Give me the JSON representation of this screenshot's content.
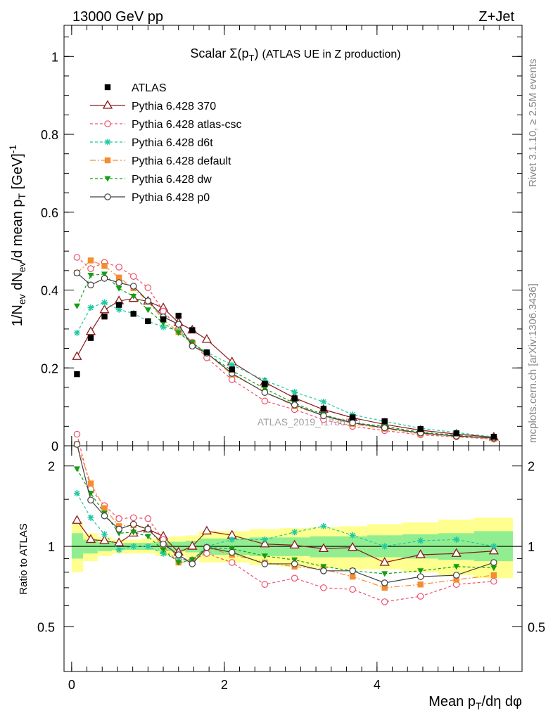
{
  "header": {
    "left": "13000 GeV pp",
    "right": "Z+Jet"
  },
  "plot_title": "Scalar Σ(pT) (ATLAS UE in Z production)",
  "side_labels": {
    "rivet": "Rivet 3.1.10, ≥ 2.5M events",
    "mcplots": "mcplots.cern.ch [arXiv:1306.3436]"
  },
  "watermark": "ATLAS_2019_I1736531",
  "colors": {
    "ATLAS": "#000000",
    "p370": "#8b1a1a",
    "atlascsc": "#f0506e",
    "d6t": "#20c8a0",
    "default": "#f58c30",
    "dw": "#10a010",
    "p0": "#404040",
    "band_green": "#90ee90",
    "band_yellow": "#ffff90"
  },
  "chart_data": [
    {
      "type": "line",
      "panel": "main",
      "ylabel": "1/Nev dNev/d mean pT [GeV]-1",
      "xlim": [
        -0.1,
        5.9
      ],
      "ylim": [
        0,
        1.08
      ],
      "yticks": [
        0,
        0.2,
        0.4,
        0.6,
        0.8,
        1
      ],
      "ytick_labels": [
        "0",
        "0.2",
        "0.4",
        "0.6",
        "0.8",
        "1"
      ],
      "x": [
        0.07,
        0.25,
        0.43,
        0.62,
        0.81,
        1.0,
        1.2,
        1.4,
        1.58,
        1.77,
        2.1,
        2.53,
        2.92,
        3.3,
        3.68,
        4.1,
        4.57,
        5.04,
        5.53
      ],
      "series": [
        {
          "name": "ATLAS",
          "key": "ATLAS",
          "marker": "square",
          "values": [
            0.184,
            0.277,
            0.332,
            0.362,
            0.339,
            0.32,
            0.325,
            0.334,
            0.297,
            0.24,
            0.196,
            0.159,
            0.122,
            0.095,
            0.073,
            0.063,
            0.043,
            0.032,
            0.023
          ]
        },
        {
          "name": "Pythia 6.428 370",
          "key": "p370",
          "marker": "triangle-up-open",
          "dash": "",
          "values": [
            0.229,
            0.293,
            0.349,
            0.372,
            0.378,
            0.371,
            0.354,
            0.316,
            0.297,
            0.273,
            0.215,
            0.163,
            0.123,
            0.093,
            0.072,
            0.055,
            0.04,
            0.03,
            0.022
          ]
        },
        {
          "name": "Pythia 6.428 atlas-csc",
          "key": "atlascsc",
          "marker": "circle-open",
          "dash": "4,3",
          "values": [
            0.484,
            0.455,
            0.471,
            0.459,
            0.435,
            0.406,
            0.346,
            0.301,
            0.266,
            0.226,
            0.17,
            0.115,
            0.093,
            0.067,
            0.05,
            0.039,
            0.028,
            0.023,
            0.017
          ]
        },
        {
          "name": "Pythia 6.428 d6t",
          "key": "d6t",
          "marker": "star",
          "dash": "4,3",
          "values": [
            0.29,
            0.355,
            0.368,
            0.35,
            0.34,
            0.32,
            0.305,
            0.297,
            0.263,
            0.24,
            0.208,
            0.168,
            0.138,
            0.113,
            0.08,
            0.063,
            0.045,
            0.034,
            0.023
          ]
        },
        {
          "name": "Pythia 6.428 default",
          "key": "default",
          "marker": "square",
          "dash": "8,3,2,3",
          "values": [
            0.444,
            0.476,
            0.462,
            0.432,
            0.405,
            0.371,
            0.324,
            0.292,
            0.262,
            0.238,
            0.183,
            0.139,
            0.102,
            0.078,
            0.056,
            0.044,
            0.031,
            0.024,
            0.018
          ]
        },
        {
          "name": "Pythia 6.428 dw",
          "key": "dw",
          "marker": "triangle-down",
          "dash": "4,3",
          "values": [
            0.359,
            0.438,
            0.441,
            0.404,
            0.384,
            0.349,
            0.315,
            0.29,
            0.265,
            0.237,
            0.193,
            0.147,
            0.109,
            0.08,
            0.059,
            0.05,
            0.035,
            0.027,
            0.019
          ]
        },
        {
          "name": "Pythia 6.428 p0",
          "key": "p0",
          "marker": "circle-open",
          "dash": "",
          "values": [
            0.444,
            0.413,
            0.43,
            0.419,
            0.41,
            0.372,
            0.331,
            0.312,
            0.256,
            0.238,
            0.186,
            0.137,
            0.105,
            0.077,
            0.059,
            0.046,
            0.033,
            0.025,
            0.02
          ]
        }
      ]
    },
    {
      "type": "line",
      "panel": "ratio",
      "ylabel": "Ratio to ATLAS",
      "xlabel": "Mean pT/dη dφ",
      "xlim": [
        -0.1,
        5.9
      ],
      "xticks": [
        0,
        2,
        4
      ],
      "xtick_labels": [
        "0",
        "2",
        "4"
      ],
      "ylim": [
        0.34,
        2.38
      ],
      "yticks": [
        0.5,
        1,
        2
      ],
      "ytick_labels": [
        "0.5",
        "1",
        "2"
      ],
      "yticks_right": [
        0.5,
        1,
        2
      ],
      "band_edges": [
        0.0,
        0.15,
        0.34,
        0.53,
        0.72,
        0.91,
        1.1,
        1.3,
        1.49,
        1.67,
        1.87,
        2.33,
        2.73,
        3.12,
        3.49,
        3.87,
        4.33,
        4.8,
        5.27,
        5.78
      ],
      "band_green": [
        [
          0.9,
          1.12
        ],
        [
          0.94,
          1.06
        ],
        [
          0.96,
          1.04
        ],
        [
          0.97,
          1.03
        ],
        [
          0.97,
          1.03
        ],
        [
          0.97,
          1.03
        ],
        [
          0.96,
          1.04
        ],
        [
          0.96,
          1.04
        ],
        [
          0.95,
          1.05
        ],
        [
          0.93,
          1.07
        ],
        [
          0.93,
          1.07
        ],
        [
          0.92,
          1.08
        ],
        [
          0.92,
          1.08
        ],
        [
          0.91,
          1.09
        ],
        [
          0.91,
          1.09
        ],
        [
          0.91,
          1.1
        ],
        [
          0.9,
          1.11
        ],
        [
          0.89,
          1.12
        ],
        [
          0.88,
          1.14
        ]
      ],
      "band_yellow": [
        [
          0.8,
          1.23
        ],
        [
          0.88,
          1.12
        ],
        [
          0.92,
          1.08
        ],
        [
          0.94,
          1.06
        ],
        [
          0.94,
          1.06
        ],
        [
          0.94,
          1.07
        ],
        [
          0.92,
          1.08
        ],
        [
          0.92,
          1.09
        ],
        [
          0.9,
          1.1
        ],
        [
          0.87,
          1.14
        ],
        [
          0.87,
          1.14
        ],
        [
          0.85,
          1.16
        ],
        [
          0.84,
          1.17
        ],
        [
          0.83,
          1.18
        ],
        [
          0.82,
          1.19
        ],
        [
          0.82,
          1.21
        ],
        [
          0.8,
          1.23
        ],
        [
          0.78,
          1.26
        ],
        [
          0.76,
          1.28
        ]
      ],
      "x": [
        0.07,
        0.25,
        0.43,
        0.62,
        0.81,
        1.0,
        1.2,
        1.4,
        1.58,
        1.77,
        2.1,
        2.53,
        2.92,
        3.3,
        3.68,
        4.1,
        4.57,
        5.04,
        5.53
      ],
      "series": [
        {
          "key": "p370",
          "values": [
            1.25,
            1.06,
            1.05,
            1.03,
            1.12,
            1.16,
            1.09,
            0.95,
            1.0,
            1.14,
            1.1,
            1.02,
            1.01,
            0.98,
            0.99,
            0.87,
            0.93,
            0.94,
            0.96
          ]
        },
        {
          "key": "atlascsc",
          "values": [
            2.63,
            1.64,
            1.42,
            1.27,
            1.28,
            1.27,
            1.06,
            0.9,
            0.89,
            0.94,
            0.87,
            0.72,
            0.76,
            0.7,
            0.69,
            0.62,
            0.65,
            0.72,
            0.74
          ]
        },
        {
          "key": "d6t",
          "values": [
            1.58,
            1.28,
            1.11,
            0.97,
            1.0,
            1.0,
            0.94,
            0.89,
            0.89,
            1.0,
            1.06,
            1.06,
            1.13,
            1.19,
            1.1,
            1.0,
            1.05,
            1.06,
            1.0
          ]
        },
        {
          "key": "default",
          "values": [
            2.41,
            1.72,
            1.39,
            1.19,
            1.2,
            1.16,
            1.0,
            0.87,
            0.88,
            0.99,
            0.93,
            0.87,
            0.84,
            0.82,
            0.77,
            0.7,
            0.72,
            0.75,
            0.78
          ]
        },
        {
          "key": "dw",
          "values": [
            1.95,
            1.58,
            1.33,
            1.12,
            1.13,
            1.09,
            0.97,
            0.87,
            0.89,
            0.99,
            0.98,
            0.92,
            0.89,
            0.84,
            0.81,
            0.79,
            0.81,
            0.84,
            0.83
          ]
        },
        {
          "key": "p0",
          "values": [
            2.41,
            1.49,
            1.3,
            1.16,
            1.21,
            1.16,
            1.02,
            0.93,
            0.86,
            0.99,
            0.95,
            0.86,
            0.86,
            0.81,
            0.81,
            0.73,
            0.77,
            0.78,
            0.87
          ]
        }
      ]
    }
  ]
}
